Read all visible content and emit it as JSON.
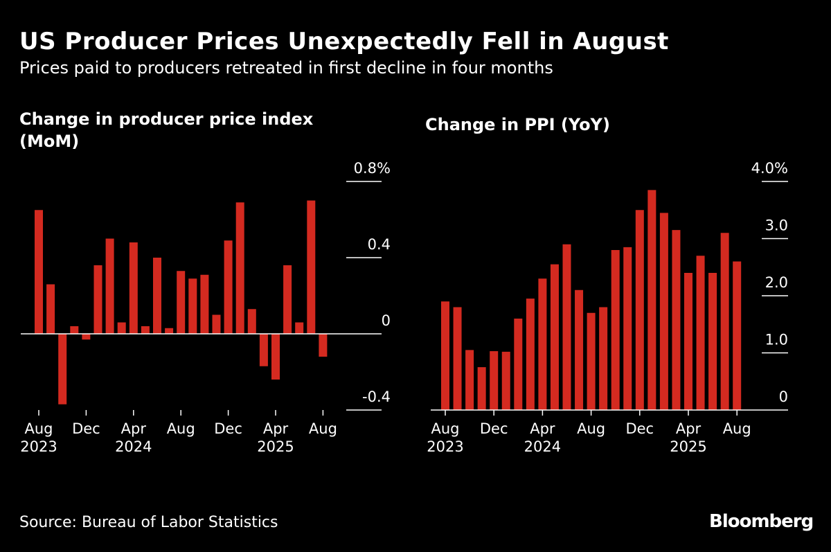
{
  "header": {
    "title": "US Producer Prices Unexpectedly Fell in August",
    "subtitle": "Prices paid to producers retreated in first decline in four months"
  },
  "footer": {
    "source": "Source: Bureau of Labor Statistics",
    "logo": "Bloomberg"
  },
  "colors": {
    "bar": "#d42a20",
    "background": "#000000",
    "text": "#ffffff"
  },
  "chart_data": [
    {
      "type": "bar",
      "title": "Change in producer price index (MoM)",
      "unit_suffix": "%",
      "ylim": [
        -0.4,
        0.8
      ],
      "yticks": [
        0.8,
        0.4,
        0,
        -0.4
      ],
      "ytick_labels": [
        "0.8%",
        "0.4",
        "0",
        "-0.4"
      ],
      "grid": false,
      "categories": [
        "Aug 2023",
        "Sep 2023",
        "Oct 2023",
        "Nov 2023",
        "Dec 2023",
        "Jan 2024",
        "Feb 2024",
        "Mar 2024",
        "Apr 2024",
        "May 2024",
        "Jun 2024",
        "Jul 2024",
        "Aug 2024",
        "Sep 2024",
        "Oct 2024",
        "Nov 2024",
        "Dec 2024",
        "Jan 2025",
        "Feb 2025",
        "Mar 2025",
        "Apr 2025",
        "May 2025",
        "Jun 2025",
        "Jul 2025",
        "Aug 2025"
      ],
      "values": [
        0.65,
        0.26,
        -0.37,
        0.04,
        -0.03,
        0.36,
        0.5,
        0.06,
        0.48,
        0.04,
        0.4,
        0.03,
        0.33,
        0.29,
        0.31,
        0.1,
        0.49,
        0.69,
        0.13,
        -0.17,
        -0.24,
        0.36,
        0.06,
        0.7,
        -0.12
      ],
      "x_tick_labels": [
        {
          "index": 0,
          "label": "Aug",
          "year": "2023"
        },
        {
          "index": 4,
          "label": "Dec",
          "year": ""
        },
        {
          "index": 8,
          "label": "Apr",
          "year": "2024"
        },
        {
          "index": 12,
          "label": "Aug",
          "year": ""
        },
        {
          "index": 16,
          "label": "Dec",
          "year": ""
        },
        {
          "index": 20,
          "label": "Apr",
          "year": "2025"
        },
        {
          "index": 24,
          "label": "Aug",
          "year": ""
        }
      ]
    },
    {
      "type": "bar",
      "title": "Change in PPI (YoY)",
      "unit_suffix": "%",
      "ylim": [
        0,
        4.0
      ],
      "yticks": [
        4.0,
        3.0,
        2.0,
        1.0,
        0
      ],
      "ytick_labels": [
        "4.0%",
        "3.0",
        "2.0",
        "1.0",
        "0"
      ],
      "grid": false,
      "categories": [
        "Aug 2023",
        "Sep 2023",
        "Oct 2023",
        "Nov 2023",
        "Dec 2023",
        "Jan 2024",
        "Feb 2024",
        "Mar 2024",
        "Apr 2024",
        "May 2024",
        "Jun 2024",
        "Jul 2024",
        "Aug 2024",
        "Sep 2024",
        "Oct 2024",
        "Nov 2024",
        "Dec 2024",
        "Jan 2025",
        "Feb 2025",
        "Mar 2025",
        "Apr 2025",
        "May 2025",
        "Jun 2025",
        "Jul 2025",
        "Aug 2025"
      ],
      "values": [
        1.9,
        1.8,
        1.05,
        0.75,
        1.03,
        1.02,
        1.6,
        1.95,
        2.3,
        2.55,
        2.9,
        2.1,
        1.7,
        1.8,
        2.8,
        2.85,
        3.5,
        3.85,
        3.45,
        3.15,
        2.4,
        2.7,
        2.4,
        3.1,
        2.6
      ],
      "x_tick_labels": [
        {
          "index": 0,
          "label": "Aug",
          "year": "2023"
        },
        {
          "index": 4,
          "label": "Dec",
          "year": ""
        },
        {
          "index": 8,
          "label": "Apr",
          "year": "2024"
        },
        {
          "index": 12,
          "label": "Aug",
          "year": ""
        },
        {
          "index": 16,
          "label": "Dec",
          "year": ""
        },
        {
          "index": 20,
          "label": "Apr",
          "year": "2025"
        },
        {
          "index": 24,
          "label": "Aug",
          "year": ""
        }
      ]
    }
  ]
}
